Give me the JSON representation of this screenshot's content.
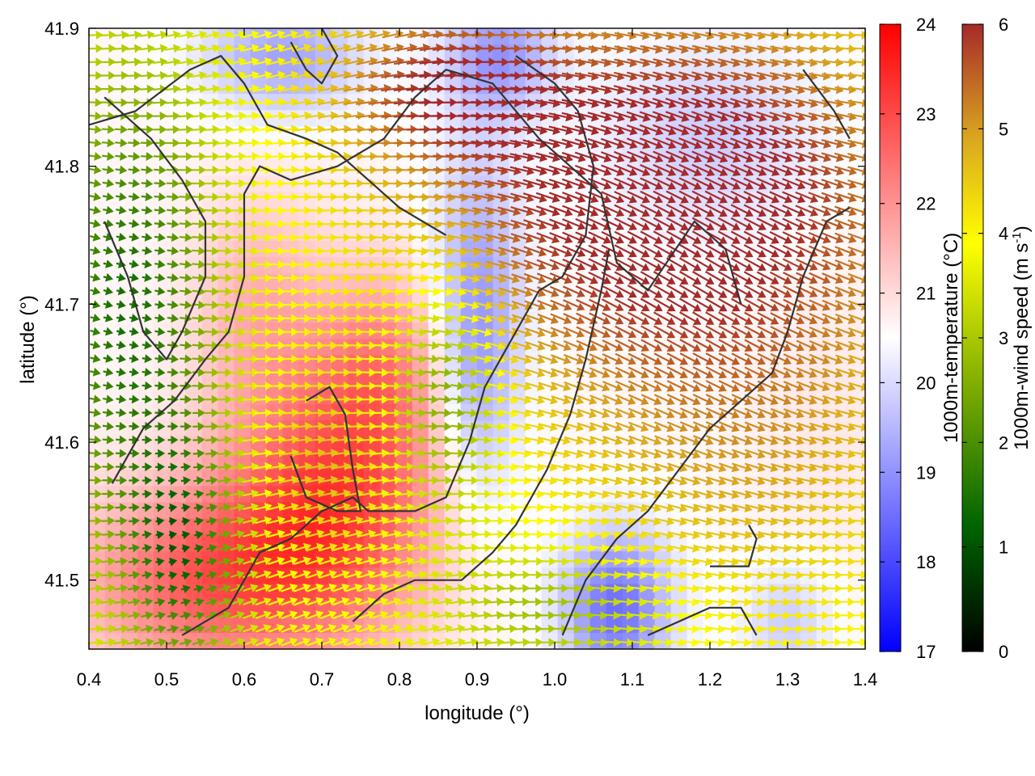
{
  "chart_data": {
    "type": "heatmap",
    "subtype": "temperature field with wind-vector overlay and contour lines",
    "title": "",
    "xlabel": "longitude (°)",
    "ylabel": "latitude (°)",
    "xlim": [
      0.4,
      1.4
    ],
    "ylim": [
      41.45,
      41.9
    ],
    "xticks": [
      "0.4",
      "0.5",
      "0.6",
      "0.7",
      "0.8",
      "0.9",
      "1.0",
      "1.1",
      "1.2",
      "1.3",
      "1.4"
    ],
    "yticks": [
      "41.5",
      "41.6",
      "41.7",
      "41.8",
      "41.9"
    ],
    "grid": false,
    "temperature_colorbar": {
      "label": "1000m-temperature (°C)",
      "range": [
        17,
        24
      ],
      "ticks": [
        "17",
        "18",
        "19",
        "20",
        "21",
        "22",
        "23",
        "24"
      ],
      "colors": {
        "low": "#0000ff",
        "mid": "#ffffff",
        "high": "#ff0000"
      }
    },
    "wind_colorbar": {
      "label_main": "1000m-wind speed (m s",
      "label_sup": "-1",
      "label_end": ")",
      "range": [
        0,
        6
      ],
      "ticks": [
        "0",
        "1",
        "2",
        "3",
        "4",
        "5",
        "6"
      ],
      "colors": [
        "#000000",
        "#006400",
        "#8db600",
        "#ffff00",
        "#daa520",
        "#a52a2a"
      ]
    },
    "temperature_field": {
      "background": 20.6,
      "blobs": [
        {
          "lon": 0.72,
          "lat": 41.56,
          "sx": 0.1,
          "sy": 0.07,
          "amp": 2.3
        },
        {
          "lon": 0.55,
          "lat": 41.5,
          "sx": 0.12,
          "sy": 0.05,
          "amp": 2.0
        },
        {
          "lon": 0.78,
          "lat": 41.66,
          "sx": 0.06,
          "sy": 0.05,
          "amp": 1.2
        },
        {
          "lon": 0.62,
          "lat": 41.7,
          "sx": 0.06,
          "sy": 0.06,
          "amp": 0.9
        },
        {
          "lon": 0.9,
          "lat": 41.68,
          "sx": 0.04,
          "sy": 0.09,
          "amp": -1.7
        },
        {
          "lon": 1.08,
          "lat": 41.48,
          "sx": 0.05,
          "sy": 0.04,
          "amp": -2.1
        },
        {
          "lon": 0.93,
          "lat": 41.88,
          "sx": 0.05,
          "sy": 0.03,
          "amp": -1.5
        },
        {
          "lon": 0.65,
          "lat": 41.88,
          "sx": 0.07,
          "sy": 0.03,
          "amp": -1.4
        },
        {
          "lon": 1.2,
          "lat": 41.82,
          "sx": 0.1,
          "sy": 0.05,
          "amp": -0.8
        },
        {
          "lon": 1.3,
          "lat": 41.47,
          "sx": 0.04,
          "sy": 0.03,
          "amp": -0.8
        },
        {
          "lon": 1.35,
          "lat": 41.62,
          "sx": 0.07,
          "sy": 0.08,
          "amp": 0.2
        }
      ]
    },
    "wind_field": {
      "speed_regions": [
        {
          "lon": 1.15,
          "lat": 41.78,
          "sx": 0.22,
          "sy": 0.1,
          "amp": 2.8
        },
        {
          "lon": 0.85,
          "lat": 41.86,
          "sx": 0.1,
          "sy": 0.04,
          "amp": 1.6
        },
        {
          "lon": 1.25,
          "lat": 41.58,
          "sx": 0.15,
          "sy": 0.08,
          "amp": 0.8
        },
        {
          "lon": 0.45,
          "lat": 41.7,
          "sx": 0.08,
          "sy": 0.12,
          "amp": -2.4
        },
        {
          "lon": 0.52,
          "lat": 41.52,
          "sx": 0.05,
          "sy": 0.06,
          "amp": -2.2
        },
        {
          "lon": 0.86,
          "lat": 41.64,
          "sx": 0.05,
          "sy": 0.06,
          "amp": -1.6
        },
        {
          "lon": 1.0,
          "lat": 41.48,
          "sx": 0.1,
          "sy": 0.03,
          "amp": -1.0
        },
        {
          "lon": 0.7,
          "lat": 41.58,
          "sx": 0.06,
          "sy": 0.05,
          "amp": 0.8
        }
      ],
      "base_speed": 3.8
    },
    "contours": [
      [
        [
          0.42,
          41.85
        ],
        [
          0.48,
          41.82
        ],
        [
          0.52,
          41.79
        ],
        [
          0.55,
          41.76
        ],
        [
          0.55,
          41.72
        ],
        [
          0.52,
          41.68
        ],
        [
          0.5,
          41.66
        ],
        [
          0.47,
          41.68
        ],
        [
          0.45,
          41.72
        ],
        [
          0.42,
          41.76
        ]
      ],
      [
        [
          0.4,
          41.83
        ],
        [
          0.46,
          41.84
        ],
        [
          0.53,
          41.87
        ],
        [
          0.57,
          41.88
        ],
        [
          0.6,
          41.86
        ],
        [
          0.63,
          41.83
        ],
        [
          0.68,
          41.82
        ],
        [
          0.72,
          41.81
        ],
        [
          0.76,
          41.79
        ],
        [
          0.8,
          41.77
        ],
        [
          0.83,
          41.76
        ],
        [
          0.86,
          41.75
        ]
      ],
      [
        [
          0.43,
          41.57
        ],
        [
          0.47,
          41.61
        ],
        [
          0.51,
          41.63
        ],
        [
          0.55,
          41.66
        ],
        [
          0.58,
          41.68
        ],
        [
          0.6,
          41.72
        ],
        [
          0.6,
          41.78
        ],
        [
          0.62,
          41.8
        ],
        [
          0.66,
          41.79
        ],
        [
          0.72,
          41.8
        ],
        [
          0.78,
          41.82
        ],
        [
          0.82,
          41.85
        ],
        [
          0.86,
          41.87
        ],
        [
          0.92,
          41.86
        ],
        [
          0.98,
          41.82
        ],
        [
          1.02,
          41.8
        ],
        [
          1.06,
          41.78
        ],
        [
          1.08,
          41.73
        ],
        [
          1.12,
          41.71
        ],
        [
          1.18,
          41.76
        ],
        [
          1.22,
          41.74
        ],
        [
          1.24,
          41.7
        ]
      ],
      [
        [
          0.52,
          41.46
        ],
        [
          0.58,
          41.48
        ],
        [
          0.62,
          41.52
        ],
        [
          0.66,
          41.53
        ],
        [
          0.7,
          41.55
        ],
        [
          0.74,
          41.56
        ],
        [
          0.76,
          41.55
        ],
        [
          0.82,
          41.55
        ],
        [
          0.86,
          41.56
        ],
        [
          0.89,
          41.6
        ],
        [
          0.91,
          41.64
        ],
        [
          0.93,
          41.66
        ],
        [
          0.95,
          41.68
        ],
        [
          0.98,
          41.71
        ],
        [
          1.01,
          41.72
        ],
        [
          1.04,
          41.75
        ],
        [
          1.05,
          41.8
        ],
        [
          1.03,
          41.84
        ],
        [
          1.0,
          41.86
        ],
        [
          0.95,
          41.88
        ]
      ],
      [
        [
          0.66,
          41.59
        ],
        [
          0.68,
          41.56
        ],
        [
          0.72,
          41.55
        ],
        [
          0.75,
          41.55
        ],
        [
          0.74,
          41.58
        ],
        [
          0.73,
          41.62
        ],
        [
          0.71,
          41.64
        ],
        [
          0.68,
          41.63
        ]
      ],
      [
        [
          0.74,
          41.47
        ],
        [
          0.78,
          41.49
        ],
        [
          0.82,
          41.5
        ],
        [
          0.85,
          41.5
        ],
        [
          0.88,
          41.5
        ],
        [
          0.92,
          41.52
        ],
        [
          0.95,
          41.54
        ],
        [
          0.99,
          41.58
        ],
        [
          1.02,
          41.62
        ],
        [
          1.04,
          41.66
        ],
        [
          1.06,
          41.71
        ],
        [
          1.07,
          41.74
        ]
      ],
      [
        [
          1.01,
          41.46
        ],
        [
          1.04,
          41.5
        ],
        [
          1.08,
          41.53
        ],
        [
          1.12,
          41.55
        ],
        [
          1.16,
          41.58
        ],
        [
          1.2,
          41.61
        ],
        [
          1.24,
          41.63
        ],
        [
          1.28,
          41.65
        ],
        [
          1.3,
          41.68
        ],
        [
          1.32,
          41.72
        ],
        [
          1.35,
          41.76
        ],
        [
          1.38,
          41.77
        ]
      ],
      [
        [
          1.12,
          41.46
        ],
        [
          1.16,
          41.47
        ],
        [
          1.2,
          41.48
        ],
        [
          1.24,
          41.48
        ],
        [
          1.26,
          41.46
        ]
      ],
      [
        [
          1.2,
          41.51
        ],
        [
          1.25,
          41.51
        ],
        [
          1.26,
          41.53
        ],
        [
          1.25,
          41.54
        ]
      ],
      [
        [
          0.66,
          41.89
        ],
        [
          0.68,
          41.87
        ],
        [
          0.7,
          41.86
        ],
        [
          0.72,
          41.88
        ],
        [
          0.7,
          41.9
        ]
      ],
      [
        [
          1.32,
          41.87
        ],
        [
          1.36,
          41.84
        ],
        [
          1.38,
          41.82
        ]
      ]
    ]
  }
}
